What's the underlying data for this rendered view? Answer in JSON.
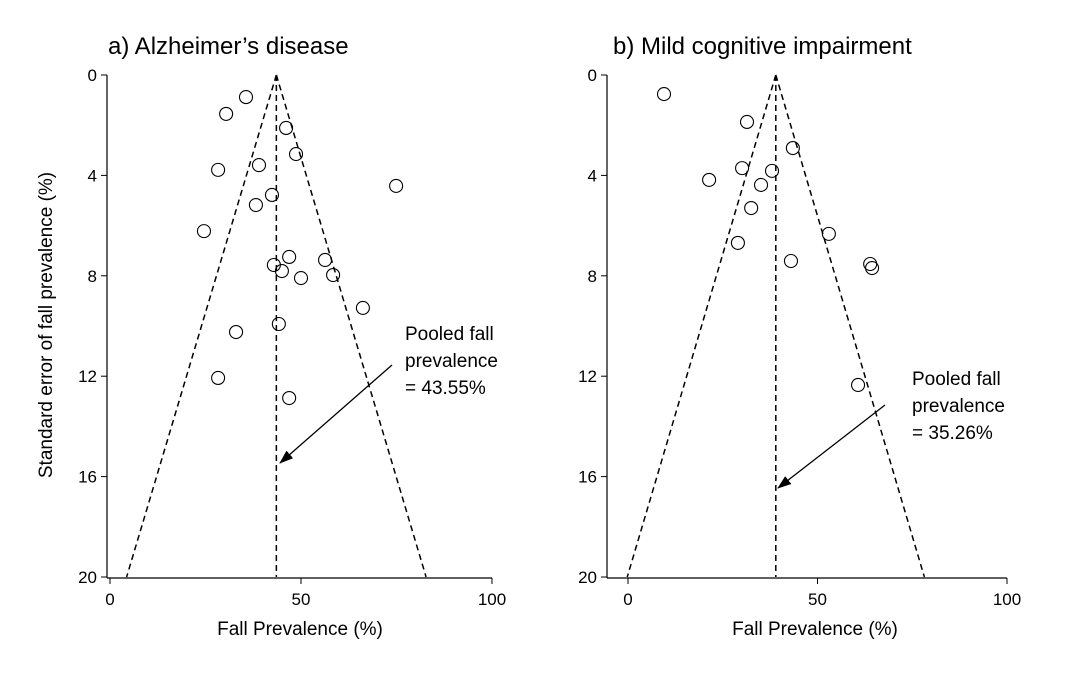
{
  "chart_data": [
    {
      "type": "scatter",
      "subtype": "funnel",
      "title": "a) Alzheimer’s disease",
      "xlabel": "Fall Prevalence (%)",
      "ylabel": "Standard error of fall prevalence (%)",
      "xlim": [
        0,
        100
      ],
      "ylim": [
        0,
        20
      ],
      "y_inverted": true,
      "xticks": [
        "0",
        "50",
        "100"
      ],
      "yticks": [
        "0",
        "4",
        "8",
        "12",
        "16",
        "20"
      ],
      "pooled": 43.55,
      "annotation": [
        "Pooled fall",
        "prevalence",
        "= 43.55%"
      ],
      "points": [
        {
          "x": 35.6,
          "y": 0.88
        },
        {
          "x": 30.4,
          "y": 1.55
        },
        {
          "x": 46.1,
          "y": 2.11
        },
        {
          "x": 48.7,
          "y": 3.15
        },
        {
          "x": 28.3,
          "y": 3.78
        },
        {
          "x": 39.0,
          "y": 3.59
        },
        {
          "x": 74.9,
          "y": 4.42
        },
        {
          "x": 42.4,
          "y": 4.78
        },
        {
          "x": 38.2,
          "y": 5.18
        },
        {
          "x": 24.6,
          "y": 6.22
        },
        {
          "x": 46.9,
          "y": 7.25
        },
        {
          "x": 42.9,
          "y": 7.57
        },
        {
          "x": 45.0,
          "y": 7.81
        },
        {
          "x": 56.3,
          "y": 7.37
        },
        {
          "x": 50.0,
          "y": 8.09
        },
        {
          "x": 58.4,
          "y": 7.97
        },
        {
          "x": 66.2,
          "y": 9.28
        },
        {
          "x": 33.0,
          "y": 10.24
        },
        {
          "x": 44.2,
          "y": 9.92
        },
        {
          "x": 28.3,
          "y": 12.07
        },
        {
          "x": 46.9,
          "y": 12.87
        }
      ]
    },
    {
      "type": "scatter",
      "subtype": "funnel",
      "title": "b) Mild cognitive impairment",
      "xlabel": "Fall Prevalence (%)",
      "ylabel": "",
      "xlim": [
        0,
        100
      ],
      "ylim": [
        0,
        20
      ],
      "y_inverted": true,
      "xticks": [
        "0",
        "50",
        "100"
      ],
      "yticks": [
        "0",
        "4",
        "8",
        "12",
        "16",
        "20"
      ],
      "pooled": 35.26,
      "center_line_x": 39.0,
      "annotation": [
        "Pooled fall",
        "prevalence",
        "= 35.26%"
      ],
      "points": [
        {
          "x": 9.5,
          "y": 0.76
        },
        {
          "x": 31.4,
          "y": 1.87
        },
        {
          "x": 43.5,
          "y": 2.91
        },
        {
          "x": 30.1,
          "y": 3.71
        },
        {
          "x": 38.0,
          "y": 3.82
        },
        {
          "x": 21.4,
          "y": 4.18
        },
        {
          "x": 35.1,
          "y": 4.38
        },
        {
          "x": 32.5,
          "y": 5.3
        },
        {
          "x": 53.0,
          "y": 6.33
        },
        {
          "x": 29.0,
          "y": 6.69
        },
        {
          "x": 43.0,
          "y": 7.41
        },
        {
          "x": 63.9,
          "y": 7.53
        },
        {
          "x": 64.4,
          "y": 7.69
        },
        {
          "x": 60.7,
          "y": 12.35
        }
      ]
    }
  ]
}
